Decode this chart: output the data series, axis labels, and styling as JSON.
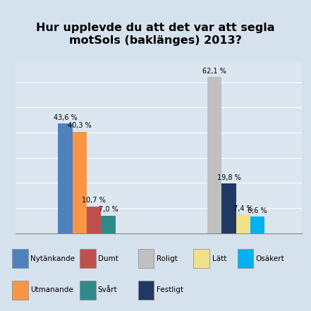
{
  "title": "Hur upplevde du att det var att segla\nmotSols (baklänges) 2013?",
  "title_correct": "Hur upplevde du att det var att segla\nmotSols (baklänges) 2013?",
  "group1_labels": [
    "43,6 %",
    "40,3 %",
    "10,7 %",
    "7,0 %"
  ],
  "group2_labels": [
    "62,1 %",
    "19,8 %",
    "7,4 %",
    "6,6 %"
  ],
  "group1_vals": [
    43.6,
    40.3,
    10.7,
    7.0
  ],
  "group2_vals": [
    62.1,
    19.8,
    7.4,
    6.6
  ],
  "g1_colors": [
    "#4F81BD",
    "#F79646",
    "#C0504D",
    "#2E8B8B"
  ],
  "g2_colors": [
    "#C0C0C0",
    "#1F3864",
    "#F0E08A",
    "#00B0F0"
  ],
  "legend_items": [
    [
      "Nytänkande",
      "#4F81BD"
    ],
    [
      "Dumt",
      "#C0504D"
    ],
    [
      "Roligt",
      "#C0C0C0"
    ],
    [
      "Lätt",
      "#F0E08A"
    ],
    [
      "Osäkert",
      "#00B0F0"
    ],
    [
      "Utmanande",
      "#F79646"
    ],
    [
      "Svårt",
      "#2E8B8B"
    ],
    [
      "Festligt",
      "#1F3864"
    ]
  ],
  "bg_color": "#D6E1EE",
  "plot_bg": "#DCE6F1",
  "ylim": [
    0,
    68
  ]
}
